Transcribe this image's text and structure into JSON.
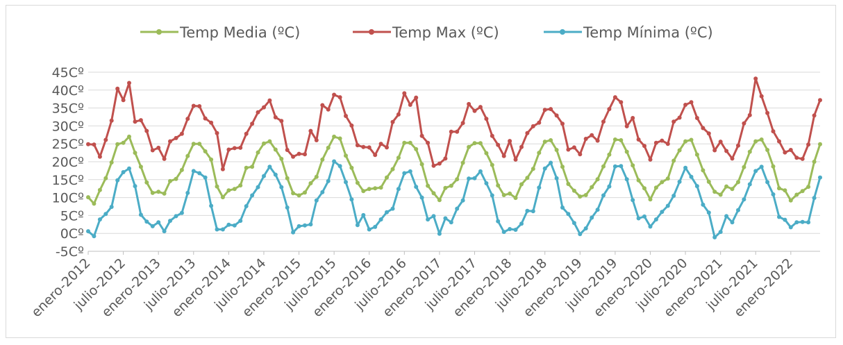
{
  "chart_data": {
    "type": "line",
    "title": "",
    "xlabel": "",
    "ylabel": "",
    "legend_position": "top",
    "grid": true,
    "ylim": [
      -5,
      45
    ],
    "y_ticks": [
      "-5Cº",
      "0Cº",
      "5Cº",
      "10Cº",
      "15Cº",
      "20Cº",
      "25Cº",
      "30Cº",
      "35Cº",
      "40Cº",
      "45Cº"
    ],
    "x_tick_labels": [
      "enero-2012",
      "julio-2012",
      "enero-2013",
      "julio-2013",
      "enero-2014",
      "julio-2014",
      "enero-2015",
      "julio-2015",
      "enero-2016",
      "julio-2016",
      "enero-2017",
      "julio-2017",
      "enero-2018",
      "julio-2018",
      "enero-2019",
      "julio-2019",
      "enero-2020",
      "julio-2020",
      "enero-2021",
      "julio-2021",
      "enero-2022"
    ],
    "x_start": "2012-01",
    "x_end": "2022-12",
    "series": [
      {
        "name": "Temp Media (ºC)",
        "color": "#9bbb59",
        "values": [
          10.1,
          8.3,
          12.1,
          15.4,
          19.8,
          24.9,
          25.3,
          27.0,
          22.5,
          18.6,
          14.2,
          11.3,
          11.6,
          11.1,
          14.6,
          15.2,
          17.7,
          21.6,
          25.0,
          25.0,
          22.9,
          20.6,
          13.1,
          10.1,
          12.0,
          12.4,
          13.4,
          18.3,
          18.6,
          22.6,
          25.1,
          25.7,
          23.4,
          20.8,
          15.4,
          11.2,
          10.6,
          11.4,
          14.0,
          15.8,
          20.6,
          23.9,
          27.0,
          26.5,
          21.7,
          18.3,
          14.1,
          11.8,
          12.4,
          12.6,
          12.8,
          15.6,
          17.9,
          21.1,
          25.3,
          25.3,
          23.5,
          19.3,
          13.3,
          11.2,
          9.3,
          12.7,
          13.3,
          15.1,
          19.7,
          24.1,
          25.2,
          25.2,
          22.4,
          19.1,
          13.4,
          10.7,
          11.1,
          9.9,
          13.7,
          15.5,
          18.0,
          22.5,
          25.6,
          26.0,
          23.3,
          18.6,
          13.8,
          11.9,
          10.3,
          10.7,
          12.9,
          15.1,
          18.7,
          22.0,
          26.2,
          26.0,
          22.8,
          19.0,
          14.8,
          12.6,
          9.5,
          12.8,
          14.3,
          15.3,
          20.3,
          23.2,
          25.7,
          26.1,
          22.0,
          17.6,
          14.4,
          11.6,
          10.8,
          13.1,
          12.4,
          14.3,
          18.5,
          22.8,
          25.7,
          26.2,
          23.3,
          18.7,
          12.6,
          12.0,
          9.2,
          10.8,
          11.8,
          13.0,
          20.0,
          24.9
        ]
      },
      {
        "name": "Temp Max (ºC)",
        "color": "#c0504d",
        "values": [
          24.9,
          24.8,
          21.4,
          26.1,
          31.5,
          40.4,
          37.2,
          42.0,
          31.2,
          31.6,
          28.6,
          23.2,
          23.9,
          20.8,
          25.7,
          26.6,
          27.8,
          32.0,
          35.6,
          35.5,
          32.1,
          30.9,
          28.0,
          17.9,
          23.4,
          23.8,
          23.9,
          27.8,
          30.6,
          33.8,
          35.2,
          37.1,
          32.4,
          31.4,
          23.3,
          21.4,
          22.2,
          22.1,
          28.6,
          26.0,
          35.8,
          34.6,
          38.7,
          38.0,
          32.8,
          30.1,
          24.6,
          24.1,
          24.0,
          21.9,
          25.0,
          24.0,
          31.1,
          33.2,
          39.1,
          35.9,
          37.9,
          27.2,
          25.3,
          18.9,
          19.5,
          20.9,
          28.4,
          28.4,
          30.8,
          36.1,
          34.2,
          35.3,
          32.0,
          27.2,
          24.7,
          21.6,
          25.8,
          20.6,
          24.1,
          28.0,
          29.9,
          30.9,
          34.5,
          34.7,
          32.9,
          30.6,
          23.4,
          24.0,
          22.1,
          26.4,
          27.4,
          25.9,
          31.2,
          34.7,
          38.0,
          36.6,
          29.9,
          32.2,
          26.2,
          24.4,
          20.6,
          25.3,
          25.9,
          25.0,
          31.2,
          32.3,
          35.9,
          36.6,
          32.2,
          29.4,
          27.9,
          23.2,
          25.6,
          23.0,
          20.9,
          24.5,
          30.7,
          33.0,
          43.2,
          38.3,
          33.6,
          28.5,
          25.7,
          22.6,
          23.3,
          21.1,
          20.8,
          24.8,
          32.9,
          37.2
        ]
      },
      {
        "name": "Temp Mínima (ºC)",
        "color": "#4bacc6",
        "values": [
          0.6,
          -0.8,
          3.9,
          5.4,
          7.4,
          14.8,
          17.1,
          18.1,
          13.2,
          5.2,
          3.3,
          2.0,
          3.1,
          0.6,
          3.5,
          4.8,
          5.7,
          11.3,
          17.4,
          16.8,
          15.6,
          7.7,
          1.1,
          1.1,
          2.4,
          2.2,
          3.5,
          7.6,
          10.6,
          12.9,
          16.0,
          18.6,
          16.4,
          12.9,
          7.2,
          0.3,
          2.0,
          2.2,
          2.5,
          9.2,
          11.5,
          14.6,
          20.1,
          18.8,
          14.3,
          9.5,
          2.3,
          5.1,
          1.1,
          1.8,
          3.9,
          5.9,
          6.9,
          12.4,
          16.8,
          17.3,
          13.0,
          10.0,
          3.9,
          4.8,
          -0.1,
          4.2,
          3.1,
          6.9,
          9.2,
          15.3,
          15.4,
          17.3,
          14.0,
          10.6,
          3.4,
          0.4,
          1.2,
          1.0,
          2.7,
          6.3,
          6.2,
          12.8,
          18.1,
          19.7,
          15.4,
          7.2,
          5.4,
          2.9,
          -0.2,
          1.4,
          4.4,
          6.6,
          10.6,
          13.1,
          18.7,
          18.8,
          15.1,
          9.3,
          4.2,
          4.7,
          1.9,
          3.9,
          6.0,
          7.7,
          10.5,
          14.4,
          18.3,
          15.8,
          13.2,
          8.0,
          5.8,
          -1.1,
          0.4,
          4.8,
          3.1,
          6.5,
          9.5,
          13.7,
          17.4,
          18.6,
          14.3,
          10.9,
          4.6,
          3.8,
          1.7,
          3.1,
          3.2,
          3.1,
          9.9,
          15.6
        ]
      }
    ]
  }
}
